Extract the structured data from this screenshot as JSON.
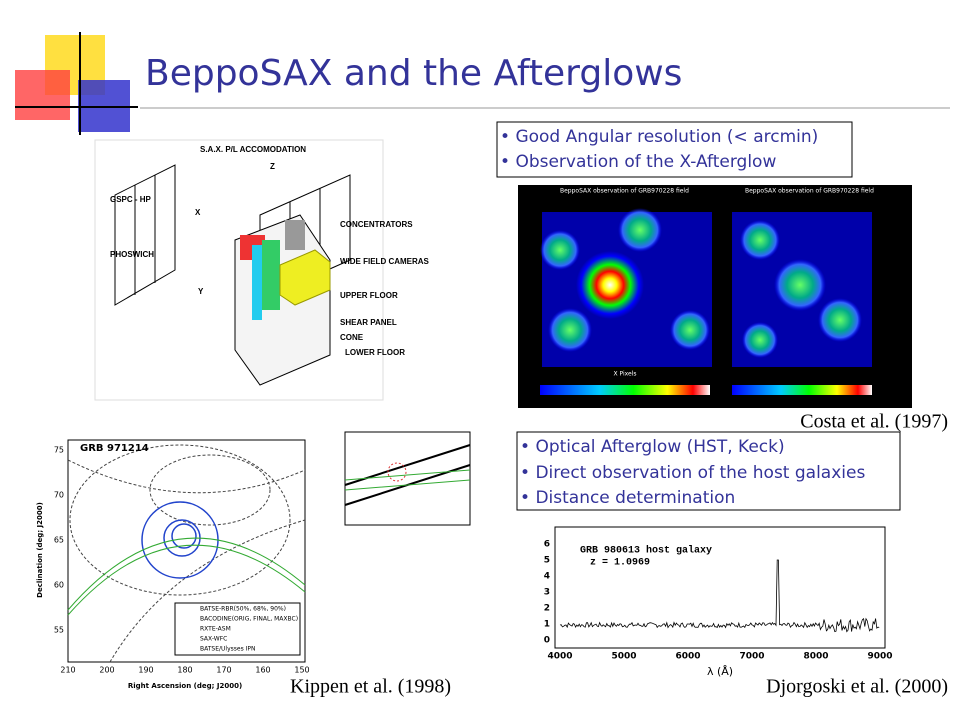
{
  "header": {
    "title": "BeppoSAX and the Afterglows"
  },
  "bullets": [
    {
      "items": [
        "Good Angular resolution (< arcmin)",
        "Observation of the X-Afterglow"
      ]
    },
    {
      "items": [
        "Optical Afterglow (HST, Keck)",
        "Direct observation of the host galaxies",
        "Distance determination"
      ]
    }
  ],
  "figures": {
    "spacecraft": {
      "title": "S.A.X. P/L ACCOMODATION",
      "labels": [
        "GSPC - HP",
        "PHOSWICH",
        "CONCENTRATORS",
        "WIDE FIELD CAMERAS",
        "UPPER FLOOR",
        "SHEAR PANEL",
        "CONE",
        "LOWER FLOOR",
        "X",
        "Y",
        "Z"
      ]
    },
    "mecs": {
      "panels": [
        "BeppoSAX observation of GRB970228 field",
        "BeppoSAX observation of GRB970228 field"
      ],
      "xlabel": "X Pixels",
      "caption": "Costa et al. (1997)"
    },
    "kippen": {
      "title": "GRB 971214",
      "xlabel": "Right Ascension (deg; J2000)",
      "ylabel": "Declination (deg; J2000)",
      "xticks": [
        "210",
        "200",
        "190",
        "180",
        "170",
        "160",
        "150"
      ],
      "yticks": [
        "75",
        "70",
        "65",
        "60",
        "55"
      ],
      "legend": [
        "BATSE-RBR(50%, 68%, 90%)",
        "BACODINE(ORIG, FINAL, MAXBC)",
        "RXTE-ASM",
        "SAX-WFC",
        "BATSE/Ulysses IPN"
      ],
      "caption": "Kippen et al. (1998)"
    },
    "spectrum": {
      "title": "GRB 980613 host galaxy",
      "redshift": "z = 1.0969",
      "xlabel": "λ (Å)",
      "xticks": [
        "4000",
        "5000",
        "6000",
        "7000",
        "8000",
        "9000"
      ],
      "yticks": [
        "0",
        "1",
        "2",
        "3",
        "4",
        "5",
        "6"
      ],
      "caption": "Djorgoski et al. (2000)"
    }
  }
}
